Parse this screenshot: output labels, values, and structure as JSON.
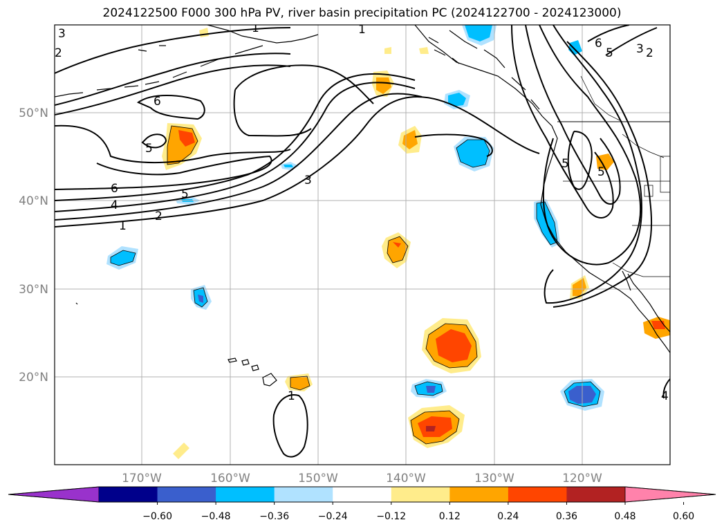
{
  "title": "2024122500 F000 300 hPa PV, river basin precipitation PC (2024122700 - 2024123000)",
  "lat_labels": [
    "50°N",
    "40°N",
    "30°N",
    "20°N"
  ],
  "lon_labels": [
    "170°W",
    "160°W",
    "150°W",
    "140°W",
    "130°W",
    "120°W"
  ],
  "colorbar": {
    "ticks": [
      "−0.60",
      "−0.48",
      "−0.36",
      "−0.24",
      "−0.12",
      "0.12",
      "0.24",
      "0.36",
      "0.48",
      "0.60"
    ],
    "colors": [
      "#9932cc",
      "#00008b",
      "#3a5fcd",
      "#00bfff",
      "#b0e2ff",
      "#ffffff",
      "#ffec8b",
      "#ffa500",
      "#ff4500",
      "#b22222",
      "#ff82ab"
    ]
  },
  "contour_labels": [
    "3",
    "2",
    "1",
    "1",
    "6",
    "5",
    "3",
    "2",
    "6",
    "5",
    "6",
    "5",
    "4",
    "2",
    "1",
    "5",
    "3",
    "1",
    "5",
    "4"
  ]
}
